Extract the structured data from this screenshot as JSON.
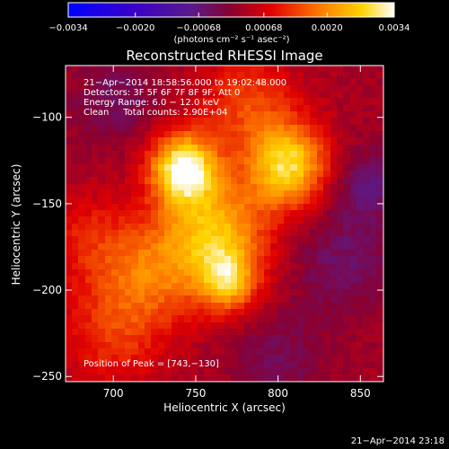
{
  "chart_data": {
    "type": "heatmap",
    "title": "Reconstructed RHESSI Image",
    "xlabel": "Heliocentric X (arcsec)",
    "ylabel": "Heliocentric Y (arcsec)",
    "xlim": [
      671,
      864
    ],
    "ylim": [
      -253,
      -70
    ],
    "x_ticks": [
      700,
      750,
      800,
      850
    ],
    "y_ticks": [
      -100,
      -150,
      -200,
      -250
    ],
    "x_tick_labels": [
      "700",
      "750",
      "800",
      "850"
    ],
    "y_tick_labels": [
      "−100",
      "−150",
      "−200",
      "−250"
    ],
    "colorbar": {
      "range": [
        -0.0034,
        0.0034
      ],
      "ticks": [
        -0.0034,
        -0.002,
        -0.00068,
        0.00068,
        0.002,
        0.0034
      ],
      "tick_labels": [
        "−0.0034",
        "−0.0020",
        "−0.00068",
        "0.00068",
        "0.0020",
        "0.0034"
      ],
      "units": "(photons cm⁻² s⁻¹ asec⁻²)",
      "colormap": "blue-purple-red-orange-yellow-white"
    },
    "annotations": [
      "21−Apr−2014 18:58:56.000 to 19:02:48.000",
      "Detectors: 3F 5F 6F 7F 8F 9F, Att 0",
      "Energy Range: 6.0 − 12.0 keV",
      "Clean     Total counts: 2.90E+04"
    ],
    "peak_label": "Position of Peak = [743,−130]",
    "peak": [
      743,
      -130
    ],
    "sources": [
      {
        "x": 743,
        "y": -130,
        "amplitude": 0.0032,
        "sigma": 14
      },
      {
        "x": 806,
        "y": -128,
        "amplitude": 0.0026,
        "sigma": 17
      },
      {
        "x": 762,
        "y": -168,
        "amplitude": 0.0022,
        "sigma": 22
      },
      {
        "x": 770,
        "y": -195,
        "amplitude": 0.0018,
        "sigma": 12
      },
      {
        "x": 722,
        "y": -190,
        "amplitude": 0.0013,
        "sigma": 22
      },
      {
        "x": 782,
        "y": -92,
        "amplitude": 0.0011,
        "sigma": 20
      },
      {
        "x": 700,
        "y": -225,
        "amplitude": 0.0009,
        "sigma": 22
      },
      {
        "x": 685,
        "y": -170,
        "amplitude": 0.0007,
        "sigma": 18
      },
      {
        "x": 840,
        "y": -185,
        "amplitude": -0.0007,
        "sigma": 22
      },
      {
        "x": 855,
        "y": -140,
        "amplitude": -0.0008,
        "sigma": 16
      },
      {
        "x": 700,
        "y": -90,
        "amplitude": -0.0006,
        "sigma": 18
      },
      {
        "x": 800,
        "y": -240,
        "amplitude": -0.0006,
        "sigma": 18
      }
    ]
  },
  "footer": {
    "timestamp": "21−Apr−2014 23:18"
  }
}
